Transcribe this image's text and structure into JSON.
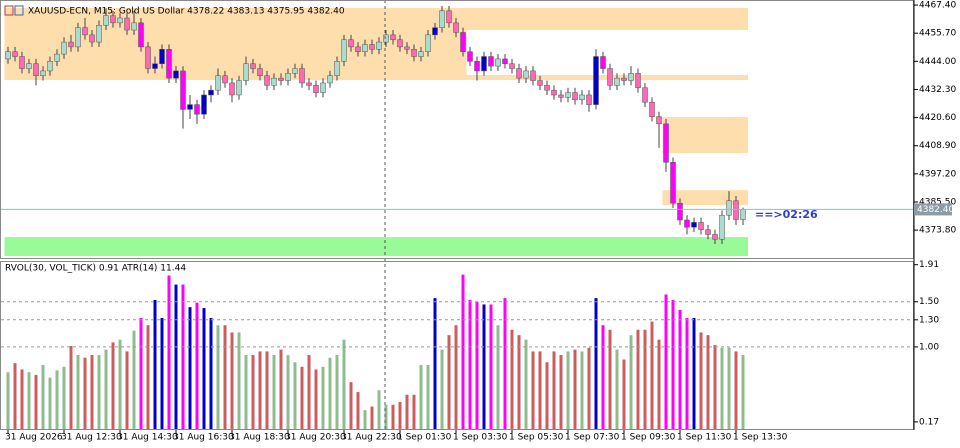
{
  "chart_data": {
    "type": "candlestick",
    "title": "XAUUSD-ECN, M15: Gold US Dollar  4378.22 4383.13 4375.95 4382.40",
    "categories": [
      "31 Aug 2026",
      null,
      null,
      null,
      null,
      null,
      null,
      null,
      "31 Aug 12:30",
      null,
      null,
      null,
      null,
      null,
      null,
      null,
      "31 Aug 14:30",
      null,
      null,
      null,
      null,
      null,
      null,
      null,
      "31 Aug 16:30",
      null,
      null,
      null,
      null,
      null,
      null,
      null,
      "31 Aug 18:30",
      null,
      null,
      null,
      null,
      null,
      null,
      null,
      "31 Aug 20:30",
      null,
      null,
      null,
      null,
      null,
      null,
      null,
      "31 Aug 22:30",
      null,
      null,
      null,
      null,
      null,
      null,
      null,
      "1 Sep 01:30",
      null,
      null,
      null,
      null,
      null,
      null,
      null,
      "1 Sep 03:30",
      null,
      null,
      null,
      null,
      null,
      null,
      null,
      "1 Sep 05:30",
      null,
      null,
      null,
      null,
      null,
      null,
      null,
      "1 Sep 07:30",
      null,
      null,
      null,
      null,
      null,
      null,
      null,
      "1 Sep 09:30",
      null,
      null,
      null,
      null,
      null,
      null,
      null,
      "1 Sep 11:30",
      null,
      null,
      null,
      null,
      null,
      null,
      null,
      "1 Sep 13:30",
      null
    ],
    "open": [
      4445,
      4448,
      4446,
      4441,
      4443,
      4438,
      4440,
      4444,
      4447,
      4452,
      4450,
      4458,
      4455,
      4452,
      4459,
      4463,
      4460,
      4462,
      4457,
      4460,
      4450,
      4441,
      4443,
      4449,
      4437,
      4440,
      4424,
      4426,
      4422,
      4430,
      4432,
      4438,
      4435,
      4430,
      4436,
      4443,
      4441,
      4438,
      4434,
      4437,
      4436,
      4439,
      4441,
      4435,
      4434,
      4431,
      4435,
      4438,
      4444,
      4453,
      4450,
      4448,
      4451,
      4449,
      4452,
      4455,
      4453,
      4450,
      4449,
      4446,
      4448,
      4455,
      4458,
      4465,
      4460,
      4456,
      4448,
      4444,
      4440,
      4446,
      4442,
      4445,
      4443,
      4441,
      4437,
      4440,
      4436,
      4434,
      4432,
      4430,
      4429,
      4431,
      4428,
      4430,
      4426,
      4446,
      4441,
      4434,
      4437,
      4436,
      4439,
      4433,
      4427,
      4421,
      4418,
      4402,
      4385,
      4378,
      4375,
      4377,
      4374,
      4372,
      4370,
      4380,
      4386,
      4378.22
    ],
    "high": [
      4450,
      4450,
      4448,
      4445,
      4445,
      4442,
      4446,
      4449,
      4454,
      4455,
      4460,
      4462,
      4457,
      4461,
      4466,
      4465,
      4464,
      4464,
      4465,
      4462,
      4452,
      4446,
      4451,
      4451,
      4442,
      4442,
      4430,
      4428,
      4432,
      4434,
      4441,
      4440,
      4437,
      4438,
      4446,
      4445,
      4443,
      4440,
      4439,
      4439,
      4441,
      4443,
      4443,
      4437,
      4436,
      4437,
      4440,
      4446,
      4455,
      4455,
      4452,
      4453,
      4453,
      4454,
      4457,
      4457,
      4455,
      4452,
      4451,
      4450,
      4457,
      4460,
      4467,
      4467,
      4462,
      4458,
      4450,
      4446,
      4448,
      4448,
      4447,
      4447,
      4445,
      4443,
      4442,
      4442,
      4438,
      4436,
      4434,
      4432,
      4433,
      4433,
      4432,
      4432,
      4449,
      4448,
      4443,
      4439,
      4439,
      4442,
      4441,
      4435,
      4429,
      4423,
      4420,
      4404,
      4387,
      4380,
      4379,
      4379,
      4376,
      4374,
      4382,
      4390,
      4388,
      4383.13
    ],
    "low": [
      4443,
      4444,
      4439,
      4439,
      4434,
      4436,
      4438,
      4442,
      4445,
      4448,
      4448,
      4453,
      4450,
      4450,
      4457,
      4458,
      4458,
      4455,
      4455,
      4448,
      4439,
      4439,
      4441,
      4435,
      4435,
      4416,
      4420,
      4418,
      4420,
      4427,
      4430,
      4433,
      4427,
      4428,
      4434,
      4439,
      4436,
      4432,
      4432,
      4434,
      4434,
      4437,
      4433,
      4432,
      4429,
      4429,
      4433,
      4436,
      4442,
      4448,
      4446,
      4446,
      4447,
      4447,
      4450,
      4451,
      4448,
      4447,
      4444,
      4444,
      4446,
      4453,
      4456,
      4458,
      4454,
      4446,
      4442,
      4436,
      4438,
      4440,
      4440,
      4441,
      4439,
      4435,
      4435,
      4434,
      4432,
      4430,
      4428,
      4427,
      4427,
      4426,
      4426,
      4423,
      4424,
      4439,
      4432,
      4432,
      4434,
      4434,
      4431,
      4425,
      4419,
      4408,
      4398,
      4383,
      4376,
      4372,
      4373,
      4372,
      4370,
      4368,
      4368,
      4378,
      4376,
      4375.95
    ],
    "close": [
      4448,
      4446,
      4441,
      4443,
      4438,
      4440,
      4444,
      4447,
      4452,
      4450,
      4458,
      4455,
      4452,
      4459,
      4463,
      4460,
      4462,
      4457,
      4460,
      4450,
      4441,
      4443,
      4449,
      4437,
      4440,
      4424,
      4426,
      4422,
      4430,
      4432,
      4438,
      4435,
      4430,
      4436,
      4443,
      4441,
      4438,
      4434,
      4437,
      4436,
      4439,
      4441,
      4435,
      4434,
      4431,
      4435,
      4438,
      4444,
      4453,
      4450,
      4448,
      4451,
      4449,
      4452,
      4455,
      4453,
      4450,
      4449,
      4446,
      4448,
      4455,
      4458,
      4465,
      4460,
      4456,
      4448,
      4444,
      4440,
      4446,
      4442,
      4445,
      4443,
      4441,
      4437,
      4440,
      4436,
      4434,
      4432,
      4430,
      4429,
      4431,
      4428,
      4430,
      4426,
      4446,
      4441,
      4434,
      4437,
      4436,
      4439,
      4433,
      4427,
      4421,
      4418,
      4402,
      4385,
      4378,
      4375,
      4377,
      4374,
      4372,
      4370,
      4380,
      4386,
      4378.22,
      4382.4
    ],
    "up_color": "#a9dccd",
    "down_color": "#ff69b4",
    "ylim": [
      4362.2,
      4469.5
    ],
    "yticks": [
      {
        "value": 4467.4,
        "label": "4467.40"
      },
      {
        "value": 4455.7,
        "label": "4455.70"
      },
      {
        "value": 4444,
        "label": "4444.00"
      },
      {
        "value": 4432.3,
        "label": "4432.30"
      },
      {
        "value": 4420.6,
        "label": "4420.60"
      },
      {
        "value": 4408.9,
        "label": "4408.90"
      },
      {
        "value": 4397.2,
        "label": "4397.20"
      },
      {
        "value": 4385.5,
        "label": "4385.50"
      },
      {
        "value": 4373.8,
        "label": "4373.80"
      }
    ],
    "last_price": {
      "value": 4382.4,
      "label": "4382.40"
    },
    "countdown": "==>02:26",
    "zones": [
      {
        "from": 0,
        "high": 4466.2,
        "low": 4436.2,
        "color": "#ffdead"
      },
      {
        "from": 66,
        "high": 4457,
        "low": 4438.3,
        "color": "#ffffff"
      },
      {
        "from": 94,
        "high": 4420.8,
        "low": 4405.8,
        "color": "#ffdead"
      },
      {
        "from": 94,
        "high": 4390.4,
        "low": 4384.2,
        "color": "#ffdead"
      },
      {
        "from": 0,
        "high": 4370.9,
        "low": 4363.0,
        "color": "#98fb98"
      }
    ],
    "volume": {
      "title": "RVOL(30, VOL_TICK) 0.91 ATR(14) 11.44",
      "values": [
        0.72,
        0.82,
        0.75,
        0.72,
        0.69,
        0.8,
        0.66,
        0.74,
        0.78,
        1.01,
        0.91,
        0.88,
        0.91,
        0.91,
        0.97,
        1.05,
        1.08,
        0.95,
        1.18,
        1.32,
        1.24,
        1.52,
        1.32,
        1.79,
        1.69,
        1.69,
        1.44,
        1.49,
        1.43,
        1.32,
        1.24,
        1.24,
        1.16,
        1.16,
        0.91,
        0.91,
        0.95,
        0.95,
        0.91,
        0.97,
        0.91,
        0.83,
        0.78,
        0.91,
        0.75,
        0.78,
        0.88,
        0.91,
        1.08,
        0.61,
        0.5,
        0.3,
        0.34,
        0.52,
        0.36,
        0.36,
        0.39,
        0.47,
        0.47,
        0.8,
        0.8,
        1.54,
        0.97,
        1.13,
        1.24,
        1.8,
        1.52,
        1.5,
        1.47,
        1.47,
        1.24,
        1.54,
        1.19,
        1.13,
        1.08,
        0.95,
        0.95,
        0.83,
        0.95,
        0.91,
        0.95,
        0.97,
        0.95,
        0.99,
        1.54,
        1.24,
        1.19,
        0.97,
        0.86,
        1.13,
        1.19,
        1.19,
        1.28,
        1.08,
        1.58,
        1.52,
        1.41,
        1.32,
        1.32,
        1.16,
        1.13,
        1.02,
        0.99,
        0.99,
        0.95,
        0.91
      ],
      "colors": [
        "#8fbc8f",
        "#cd5c5c",
        "#cd5c5c",
        "#8fbc8f",
        "#cd5c5c",
        "#8fbc8f",
        "#8fbc8f",
        "#8fbc8f",
        "#8fbc8f",
        "#cd5c5c",
        "#8fbc8f",
        "#cd5c5c",
        "#cd5c5c",
        "#8fbc8f",
        "#8fbc8f",
        "#cd5c5c",
        "#8fbc8f",
        "#cd5c5c",
        "#8fbc8f",
        "#ff00ff",
        "#cd5c5c",
        "#0000cd",
        "#0000cd",
        "#ff00ff",
        "#0000cd",
        "#ff00ff",
        "#0000cd",
        "#ff00ff",
        "#0000cd",
        "#0000cd",
        "#8fbc8f",
        "#cd5c5c",
        "#cd5c5c",
        "#8fbc8f",
        "#8fbc8f",
        "#cd5c5c",
        "#cd5c5c",
        "#cd5c5c",
        "#8fbc8f",
        "#cd5c5c",
        "#8fbc8f",
        "#8fbc8f",
        "#cd5c5c",
        "#cd5c5c",
        "#cd5c5c",
        "#8fbc8f",
        "#8fbc8f",
        "#8fbc8f",
        "#8fbc8f",
        "#cd5c5c",
        "#cd5c5c",
        "#8fbc8f",
        "#cd5c5c",
        "#8fbc8f",
        "#8fbc8f",
        "#cd5c5c",
        "#cd5c5c",
        "#cd5c5c",
        "#cd5c5c",
        "#8fbc8f",
        "#8fbc8f",
        "#0000cd",
        "#8fbc8f",
        "#cd5c5c",
        "#cd5c5c",
        "#ff00ff",
        "#ff00ff",
        "#ff00ff",
        "#0000cd",
        "#ff00ff",
        "#8fbc8f",
        "#ff00ff",
        "#cd5c5c",
        "#cd5c5c",
        "#8fbc8f",
        "#cd5c5c",
        "#cd5c5c",
        "#cd5c5c",
        "#cd5c5c",
        "#cd5c5c",
        "#8fbc8f",
        "#cd5c5c",
        "#8fbc8f",
        "#cd5c5c",
        "#0000cd",
        "#ff00ff",
        "#cd5c5c",
        "#8fbc8f",
        "#cd5c5c",
        "#8fbc8f",
        "#cd5c5c",
        "#cd5c5c",
        "#cd5c5c",
        "#cd5c5c",
        "#ff00ff",
        "#ff00ff",
        "#ff00ff",
        "#ff00ff",
        "#0000cd",
        "#cd5c5c",
        "#cd5c5c",
        "#cd5c5c",
        "#8fbc8f",
        "#8fbc8f",
        "#cd5c5c",
        "#8fbc8f"
      ],
      "up_color": "#8fbc8f",
      "down_color": "#cd5c5c",
      "ylim": [
        0.08,
        1.94
      ],
      "yticks": [
        1.91,
        {
          "value": 1.5,
          "label": "1.50"
        },
        {
          "value": 1.3,
          "label": "1.30"
        },
        {
          "value": 1.0,
          "label": "1.00"
        },
        0.17
      ],
      "grid": true
    }
  }
}
